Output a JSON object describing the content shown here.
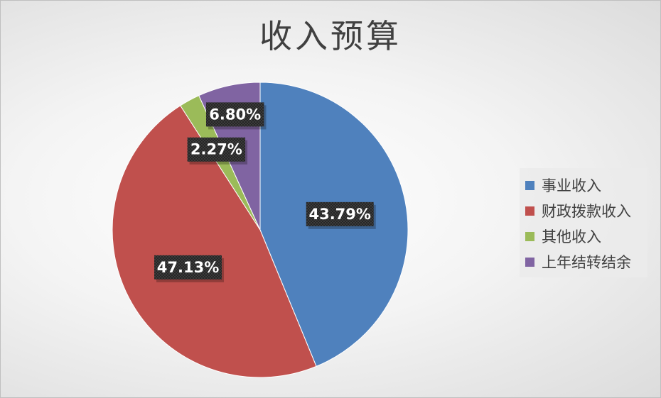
{
  "chart_data": {
    "type": "pie",
    "title": "收入预算",
    "categories": [
      "事业收入",
      "财政拨款收入",
      "其他收入",
      "上年结转结余"
    ],
    "values": [
      43.79,
      47.13,
      2.27,
      6.8
    ],
    "data_labels": [
      "43.79%",
      "47.13%",
      "2.27%",
      "6.80%"
    ],
    "colors": [
      "#4f81bd",
      "#c0504d",
      "#9bbb59",
      "#8064a2"
    ],
    "legend_position": "right",
    "start_angle_deg": 0,
    "direction": "clockwise"
  }
}
